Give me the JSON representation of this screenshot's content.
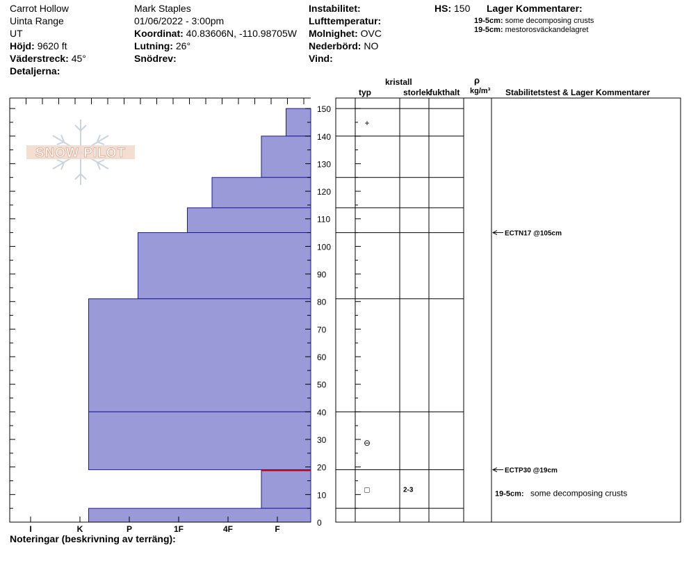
{
  "header": {
    "location": "Carrot Hollow",
    "range": "Uinta Range",
    "state": "UT",
    "elevation_label": "Höjd:",
    "elevation_value": "9620 ft",
    "aspect_label": "Väderstreck:",
    "aspect_value": "45°",
    "details_label": "Detaljerna:",
    "observer": "Mark Staples",
    "datetime": "01/06/2022 - 3:00pm",
    "coord_label": "Koordinat:",
    "coord_value": "40.83606N, -110.98705W",
    "slope_label": "Lutning:",
    "slope_value": "26°",
    "drift_label": "Snödrev:",
    "instability_label": "Instabilitet:",
    "airtemp_label": "Lufttemperatur:",
    "sky_label": "Molnighet:",
    "sky_value": "OVC",
    "precip_label": "Nederbörd:",
    "precip_value": "NO",
    "wind_label": "Vind:",
    "hs_label": "HS:",
    "hs_value": "150",
    "layer_comments_title": "Lager Kommentarer:",
    "layer_comments": [
      {
        "depth": "19-5cm:",
        "text": "some decomposing crusts"
      },
      {
        "depth": "19-5cm:",
        "text": "mestorosväckandelagret"
      }
    ]
  },
  "logo": {
    "text": "SNOW PILOT"
  },
  "columns": {
    "typ": "typ",
    "kristall": "kristall",
    "storlek": "storlek",
    "fukthalt": "fukthalt",
    "rho": "ρ",
    "density_unit": "kg/m³",
    "stability": "Stabilitetstest & Lager Kommentarer"
  },
  "footer": {
    "notes_label": "Noteringar (beskrivning av terräng):"
  },
  "chart_data": {
    "type": "bar",
    "orientation": "horizontal-step",
    "x_axis_labels": [
      "I",
      "K",
      "P",
      "1F",
      "4F",
      "F"
    ],
    "y_axis_ticks": [
      "0",
      "10",
      "20",
      "30",
      "40",
      "50",
      "60",
      "70",
      "80",
      "90",
      "100",
      "110",
      "120",
      "130",
      "140",
      "150"
    ],
    "ylim": [
      0,
      150
    ],
    "hardness_scale_note": "F=1, 4F=2, 1F=3, P=4, K=5, I=6 (steps from right edge)",
    "layers": [
      {
        "top": 150,
        "bottom": 140,
        "hardness": 0.5
      },
      {
        "top": 140,
        "bottom": 125,
        "hardness": 1.0
      },
      {
        "top": 125,
        "bottom": 114,
        "hardness": 2.0
      },
      {
        "top": 114,
        "bottom": 105,
        "hardness": 2.5
      },
      {
        "top": 105,
        "bottom": 81,
        "hardness": 3.5
      },
      {
        "top": 81,
        "bottom": 40,
        "hardness": 4.5
      },
      {
        "top": 40,
        "bottom": 19,
        "hardness": 4.5
      },
      {
        "top": 19,
        "bottom": 5,
        "hardness": 1.0
      },
      {
        "top": 5,
        "bottom": 0,
        "hardness": 4.5
      }
    ],
    "highlight_line_depth": 19,
    "grain_boundaries": [
      150,
      140,
      125,
      114,
      105,
      81,
      40,
      19,
      5
    ],
    "grains": [
      {
        "depth": 145,
        "symbol": "+"
      },
      {
        "depth": 29,
        "symbol": "⊖"
      },
      {
        "depth": 12,
        "symbol": "□",
        "size": "2-3"
      }
    ],
    "stability_tests": [
      {
        "depth": 105,
        "label": "ECTN17 @105cm"
      },
      {
        "depth": 19,
        "label": "ECTP30 @19cm"
      }
    ],
    "layer_comment": {
      "depth_label": "19-5cm:",
      "text": "some decomposing crusts",
      "depth": 10
    }
  }
}
